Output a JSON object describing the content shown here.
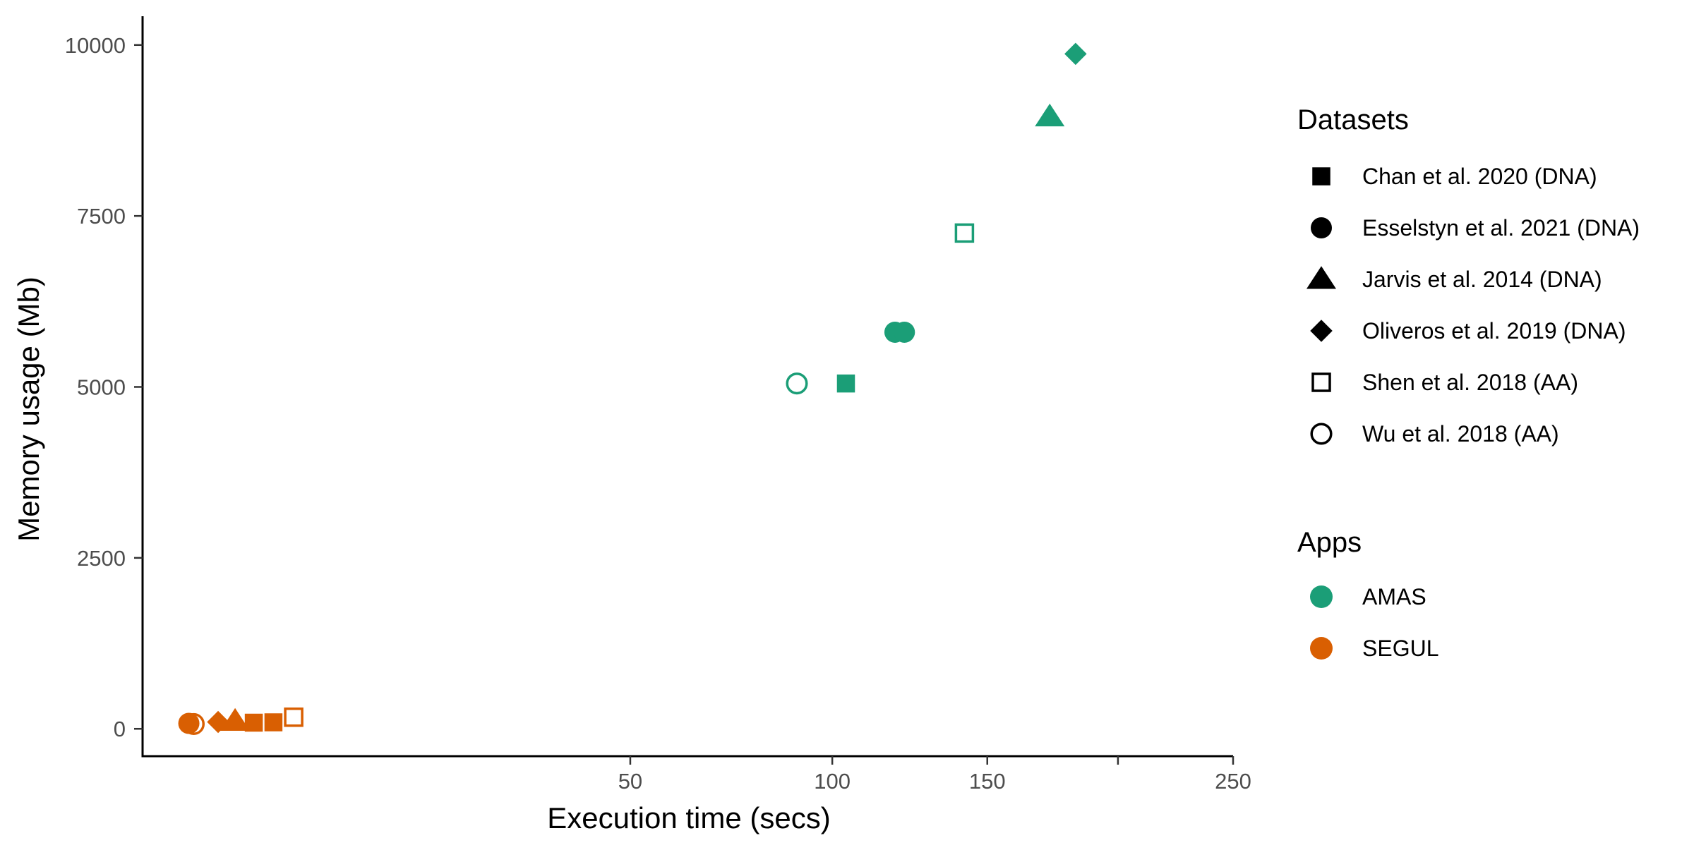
{
  "chart_data": {
    "type": "scatter",
    "xlabel": "Execution time (secs)",
    "ylabel": "Memory usage (Mb)",
    "x_scale": "sqrt",
    "xlim": [
      0,
      250
    ],
    "ylim": [
      -400,
      10400
    ],
    "x_ticks": [
      {
        "value": 50,
        "label": "50"
      },
      {
        "value": 100,
        "label": "100"
      },
      {
        "value": 150,
        "label": "150"
      },
      {
        "value": 200,
        "label": ""
      },
      {
        "value": 250,
        "label": "250"
      }
    ],
    "y_ticks": [
      {
        "value": 0,
        "label": "0"
      },
      {
        "value": 2500,
        "label": "2500"
      },
      {
        "value": 5000,
        "label": "5000"
      },
      {
        "value": 7500,
        "label": "7500"
      },
      {
        "value": 10000,
        "label": "10000"
      }
    ],
    "grid": false,
    "legend": {
      "position": "right",
      "datasets_title": "Datasets",
      "datasets": [
        {
          "name": "Chan et al. 2020 (DNA)",
          "shape": "square-filled"
        },
        {
          "name": "Esselstyn et al. 2021 (DNA)",
          "shape": "circle-filled"
        },
        {
          "name": "Jarvis et al. 2014 (DNA)",
          "shape": "triangle-filled"
        },
        {
          "name": "Oliveros et al. 2019 (DNA)",
          "shape": "diamond-filled"
        },
        {
          "name": "Shen et al. 2018 (AA)",
          "shape": "square-open"
        },
        {
          "name": "Wu et al. 2018 (AA)",
          "shape": "circle-open"
        }
      ],
      "apps_title": "Apps",
      "apps": [
        {
          "name": "AMAS",
          "color": "#1b9e77"
        },
        {
          "name": "SEGUL",
          "color": "#d95f02"
        }
      ]
    },
    "points": [
      {
        "app": "AMAS",
        "dataset": "Chan et al. 2020 (DNA)",
        "x": 104,
        "y": 5050
      },
      {
        "app": "AMAS",
        "dataset": "Esselstyn et al. 2021 (DNA)",
        "x": 119,
        "y": 5800
      },
      {
        "app": "AMAS",
        "dataset": "Esselstyn et al. 2021 (DNA)",
        "x": 122,
        "y": 5800
      },
      {
        "app": "AMAS",
        "dataset": "Jarvis et al. 2014 (DNA)",
        "x": 173,
        "y": 8950
      },
      {
        "app": "AMAS",
        "dataset": "Oliveros et al. 2019 (DNA)",
        "x": 183,
        "y": 9870
      },
      {
        "app": "AMAS",
        "dataset": "Shen et al. 2018 (AA)",
        "x": 142,
        "y": 7250
      },
      {
        "app": "AMAS",
        "dataset": "Wu et al. 2018 (AA)",
        "x": 90,
        "y": 5050
      },
      {
        "app": "SEGUL",
        "dataset": "Esselstyn et al. 2021 (DNA)",
        "x": 0.45,
        "y": 80
      },
      {
        "app": "SEGUL",
        "dataset": "Wu et al. 2018 (AA)",
        "x": 0.55,
        "y": 70
      },
      {
        "app": "SEGUL",
        "dataset": "Oliveros et al. 2019 (DNA)",
        "x": 1.2,
        "y": 100
      },
      {
        "app": "SEGUL",
        "dataset": "Jarvis et al. 2014 (DNA)",
        "x": 1.8,
        "y": 110
      },
      {
        "app": "SEGUL",
        "dataset": "Chan et al. 2020 (DNA)",
        "x": 2.6,
        "y": 90
      },
      {
        "app": "SEGUL",
        "dataset": "Chan et al. 2020 (DNA)",
        "x": 3.6,
        "y": 95
      },
      {
        "app": "SEGUL",
        "dataset": "Shen et al. 2018 (AA)",
        "x": 4.8,
        "y": 170
      }
    ]
  }
}
